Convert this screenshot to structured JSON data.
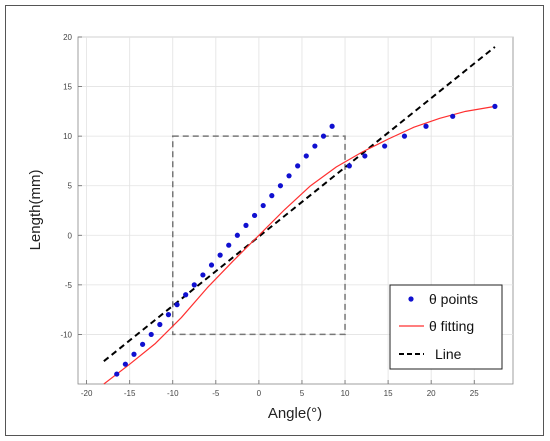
{
  "chart_data": {
    "type": "line",
    "xlabel": "Angle(°)",
    "ylabel": "Length(mm)",
    "xlim": [
      -21,
      29.5
    ],
    "ylim": [
      -15,
      20
    ],
    "xticks": [
      -20,
      -15,
      -10,
      -5,
      0,
      5,
      10,
      15,
      20,
      25
    ],
    "yticks": [
      -10,
      -5,
      0,
      5,
      10,
      15,
      20
    ],
    "grid": true,
    "legend_placement": "bottom-right",
    "colors": {
      "points": "#1010d0",
      "fitting": "#ff3030",
      "line": "#000000",
      "box": "#777777"
    },
    "series": [
      {
        "name": "θ points",
        "kind": "scatter",
        "x": [
          -16.5,
          -15.5,
          -14.5,
          -13.5,
          -12.5,
          -11.5,
          -10.5,
          -9.5,
          -8.5,
          -7.5,
          -6.5,
          -5.5,
          -4.5,
          -3.5,
          -2.5,
          -1.5,
          -0.5,
          0.5,
          1.5,
          2.5,
          3.5,
          4.5,
          5.5,
          6.5,
          7.5,
          8.5,
          10.5,
          12.3,
          14.6,
          16.9,
          19.4,
          22.5,
          27.4
        ],
        "y": [
          -14,
          -13,
          -12,
          -11,
          -10,
          -9,
          -8,
          -7,
          -6,
          -5,
          -4,
          -3,
          -2,
          -1,
          0,
          1,
          2,
          3,
          4,
          5,
          6,
          7,
          8,
          9,
          10,
          11,
          7,
          8,
          9,
          10,
          11,
          12,
          13
        ]
      },
      {
        "name": "θ fitting",
        "kind": "line",
        "x": [
          -18,
          -15,
          -12,
          -9,
          -6,
          -3,
          0,
          3,
          6,
          9,
          12,
          15,
          18,
          21,
          24,
          27.4
        ],
        "y": [
          -15,
          -13,
          -10.9,
          -8.3,
          -5.3,
          -2.6,
          0,
          2.6,
          5,
          6.9,
          8.4,
          9.7,
          10.9,
          11.8,
          12.5,
          13
        ]
      },
      {
        "name": "Line",
        "kind": "dashed-line",
        "x": [
          -18,
          27.4
        ],
        "y": [
          -12.7,
          19
        ]
      }
    ],
    "box": {
      "x": [
        -10,
        10
      ],
      "y": [
        -10,
        10
      ]
    }
  }
}
